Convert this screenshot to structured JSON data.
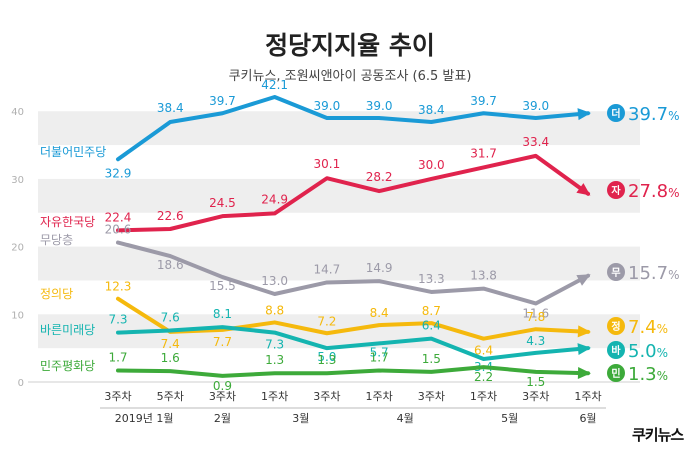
{
  "title": "정당지지율 추이",
  "subtitle": "쿠키뉴스, 조원씨앤아이 공동조사 (6.5 발표)",
  "logo": "쿠키뉴스",
  "chart_data": {
    "type": "line",
    "title": "정당지지율 추이",
    "subtitle": "쿠키뉴스, 조원씨앤아이 공동조사 (6.5 발표)",
    "ylim": [
      0,
      42
    ],
    "yticks": [
      0,
      10,
      20,
      30,
      40
    ],
    "grid": "horizontal bands",
    "x": [
      "3주차",
      "5주차",
      "3주차",
      "1주차",
      "3주차",
      "1주차",
      "3주차",
      "1주차",
      "3주차",
      "1주차"
    ],
    "month_labels": [
      {
        "label": "2019년 1월",
        "from": 0,
        "to": 1
      },
      {
        "label": "2월",
        "from": 2,
        "to": 2
      },
      {
        "label": "3월",
        "from": 3,
        "to": 4
      },
      {
        "label": "4월",
        "from": 5,
        "to": 6
      },
      {
        "label": "5월",
        "from": 7,
        "to": 8
      },
      {
        "label": "6월",
        "from": 9,
        "to": 9
      }
    ],
    "series": [
      {
        "name": "더불어민주당",
        "short": "더",
        "color": "#1a9ad6",
        "values": [
          32.9,
          38.4,
          39.7,
          42.1,
          39.0,
          39.0,
          38.4,
          39.7,
          39.0,
          39.7
        ],
        "labels": [
          "32.9",
          "38.4",
          "39.7",
          "42.1",
          "39.0",
          "39.0",
          "38.4",
          "39.7",
          "39.0",
          ""
        ],
        "final_label": "39.7",
        "final_unit": "%"
      },
      {
        "name": "자유한국당",
        "short": "자",
        "color": "#e0234d",
        "values": [
          22.4,
          22.6,
          24.5,
          24.9,
          30.1,
          28.2,
          30.0,
          31.7,
          33.4,
          27.8
        ],
        "labels": [
          "22.4",
          "22.6",
          "24.5",
          "24.9",
          "30.1",
          "28.2",
          "30.0",
          "31.7",
          "33.4",
          ""
        ],
        "final_label": "27.8",
        "final_unit": "%"
      },
      {
        "name": "무당층",
        "short": "무",
        "color": "#9c9aa8",
        "values": [
          20.6,
          18.6,
          15.5,
          13.0,
          14.7,
          14.9,
          13.3,
          13.8,
          11.6,
          15.7
        ],
        "labels": [
          "20.6",
          "18.6",
          "15.5",
          "13.0",
          "14.7",
          "14.9",
          "13.3",
          "13.8",
          "11.6",
          ""
        ],
        "final_label": "15.7",
        "final_unit": "%"
      },
      {
        "name": "정의당",
        "short": "정",
        "color": "#f5b90d",
        "values": [
          12.3,
          7.4,
          7.7,
          8.8,
          7.2,
          8.4,
          8.7,
          6.4,
          7.8,
          7.4
        ],
        "labels": [
          "12.3",
          "7.4",
          "7.7",
          "8.8",
          "7.2",
          "8.4",
          "8.7",
          "6.4",
          "7.8",
          ""
        ],
        "final_label": "7.4",
        "final_unit": "%"
      },
      {
        "name": "바른미래당",
        "short": "바",
        "color": "#14b4b0",
        "values": [
          7.3,
          7.6,
          8.1,
          7.3,
          5.0,
          5.7,
          6.4,
          3.4,
          4.3,
          5.0
        ],
        "labels": [
          "7.3",
          "7.6",
          "8.1",
          "7.3",
          "5.0",
          "5.7",
          "6.4",
          "3.4",
          "4.3",
          ""
        ],
        "final_label": "5.0",
        "final_unit": "%"
      },
      {
        "name": "민주평화당",
        "short": "민",
        "color": "#3daa3a",
        "values": [
          1.7,
          1.6,
          0.9,
          1.3,
          1.3,
          1.7,
          1.5,
          2.2,
          1.5,
          1.3
        ],
        "labels": [
          "1.7",
          "1.6",
          "0.9",
          "1.3",
          "1.3",
          "1.7",
          "1.5",
          "2.2",
          "1.5",
          ""
        ],
        "final_label": "1.3",
        "final_unit": "%"
      }
    ]
  }
}
